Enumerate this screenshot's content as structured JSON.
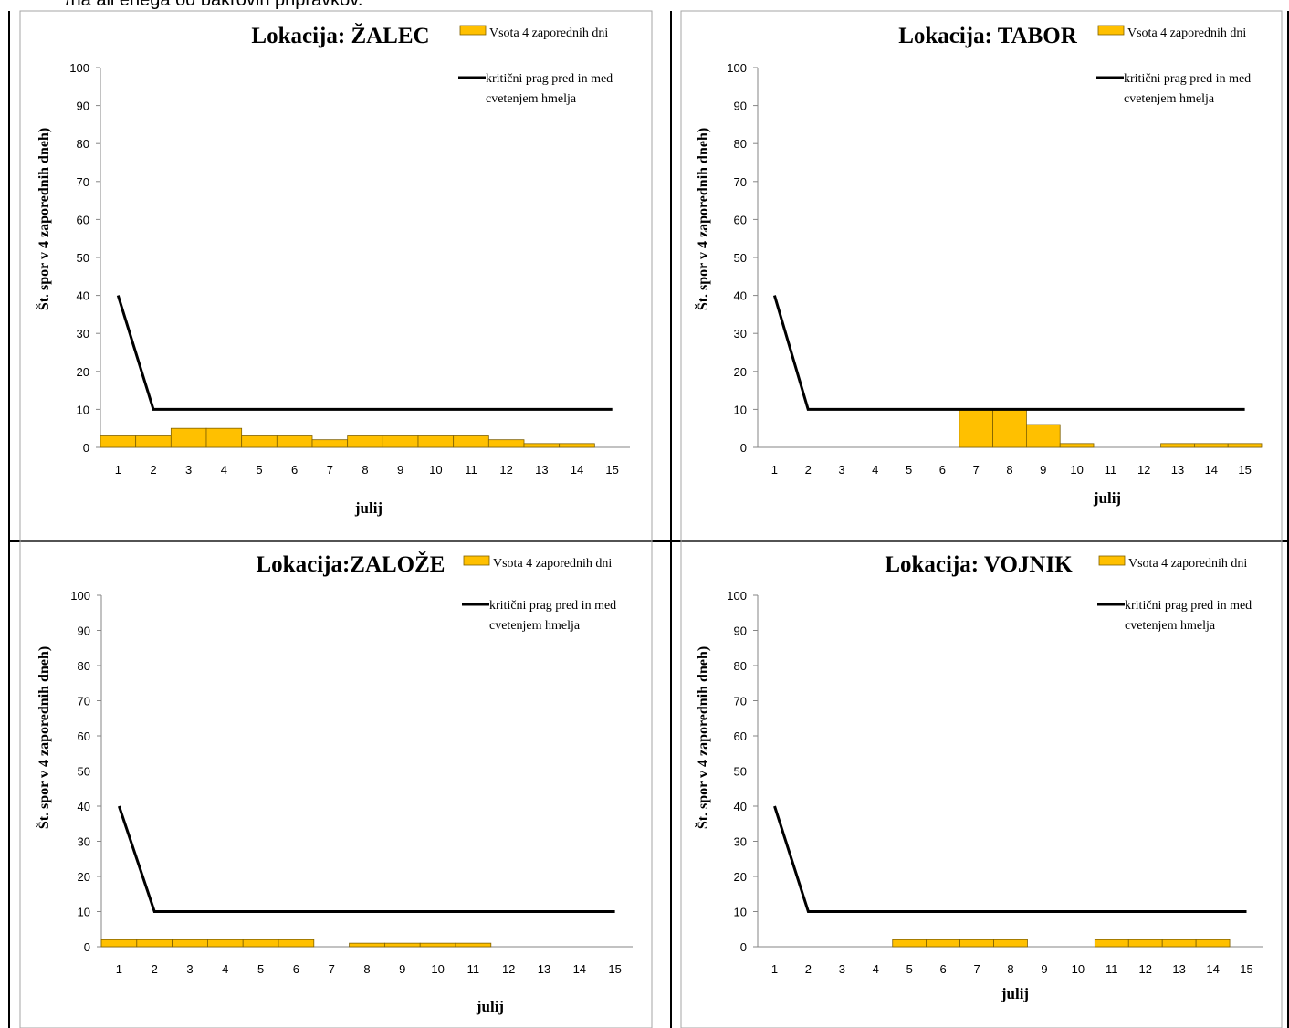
{
  "caption": "/na ali enega od bakrovih pripravkov.",
  "legend": {
    "bar_label": "Vsota 4 zaporednih dni",
    "line_label_1": "kritični prag pred in med",
    "line_label_2": "cvetenjem  hmelja"
  },
  "colors": {
    "bar": "#FFC000",
    "bar_stroke": "#7F6000",
    "line": "#000000",
    "grid_border": "#000000",
    "frame": "#A6A6A6"
  },
  "chart_data": [
    {
      "type": "bar+line",
      "title": "Lokacija: ŽALEC",
      "xlabel": "julij",
      "ylabel": "Št. spor v 4 zaporednih dneh)",
      "ylim": [
        0,
        100
      ],
      "yticks": [
        0,
        10,
        20,
        30,
        40,
        50,
        60,
        70,
        80,
        90,
        100
      ],
      "categories": [
        "1",
        "2",
        "3",
        "4",
        "5",
        "6",
        "7",
        "8",
        "9",
        "10",
        "11",
        "12",
        "13",
        "14",
        "15"
      ],
      "series": [
        {
          "name": "Vsota 4 zaporednih dni",
          "kind": "bar",
          "values": [
            3,
            3,
            5,
            5,
            3,
            3,
            2,
            3,
            3,
            3,
            3,
            2,
            1,
            1,
            0
          ]
        },
        {
          "name": "kritični prag pred in med cvetenjem  hmelja",
          "kind": "line",
          "values": [
            40,
            10,
            10,
            10,
            10,
            10,
            10,
            10,
            10,
            10,
            10,
            10,
            10,
            10,
            10
          ]
        }
      ]
    },
    {
      "type": "bar+line",
      "title": "Lokacija: TABOR",
      "xlabel": "julij",
      "ylabel": "Št. spor v 4 zaporednih dneh)",
      "ylim": [
        0,
        100
      ],
      "yticks": [
        0,
        10,
        20,
        30,
        40,
        50,
        60,
        70,
        80,
        90,
        100
      ],
      "categories": [
        "1",
        "2",
        "3",
        "4",
        "5",
        "6",
        "7",
        "8",
        "9",
        "10",
        "11",
        "12",
        "13",
        "14",
        "15"
      ],
      "series": [
        {
          "name": "Vsota 4 zaporednih dni",
          "kind": "bar",
          "values": [
            0,
            0,
            0,
            0,
            0,
            0,
            10,
            10,
            6,
            1,
            0,
            0,
            1,
            1,
            1
          ]
        },
        {
          "name": "kritični prag pred in med cvetenjem  hmelja",
          "kind": "line",
          "values": [
            40,
            10,
            10,
            10,
            10,
            10,
            10,
            10,
            10,
            10,
            10,
            10,
            10,
            10,
            10
          ]
        }
      ]
    },
    {
      "type": "bar+line",
      "title": "Lokacija:ZALOŽE",
      "xlabel": "julij",
      "ylabel": "Št. spor v 4 zaporednih dneh)",
      "ylim": [
        0,
        100
      ],
      "yticks": [
        0,
        10,
        20,
        30,
        40,
        50,
        60,
        70,
        80,
        90,
        100
      ],
      "categories": [
        "1",
        "2",
        "3",
        "4",
        "5",
        "6",
        "7",
        "8",
        "9",
        "10",
        "11",
        "12",
        "13",
        "14",
        "15"
      ],
      "series": [
        {
          "name": "Vsota 4 zaporednih dni",
          "kind": "bar",
          "values": [
            2,
            2,
            2,
            2,
            2,
            2,
            0,
            1,
            1,
            1,
            1,
            0,
            0,
            0,
            0
          ]
        },
        {
          "name": "kritični prag pred in med cvetenjem  hmelja",
          "kind": "line",
          "values": [
            40,
            10,
            10,
            10,
            10,
            10,
            10,
            10,
            10,
            10,
            10,
            10,
            10,
            10,
            10
          ]
        }
      ]
    },
    {
      "type": "bar+line",
      "title": "Lokacija: VOJNIK",
      "xlabel": "julij",
      "ylabel": "Št. spor v 4 zaporednih dneh)",
      "ylim": [
        0,
        100
      ],
      "yticks": [
        0,
        10,
        20,
        30,
        40,
        50,
        60,
        70,
        80,
        90,
        100
      ],
      "categories": [
        "1",
        "2",
        "3",
        "4",
        "5",
        "6",
        "7",
        "8",
        "9",
        "10",
        "11",
        "12",
        "13",
        "14",
        "15"
      ],
      "series": [
        {
          "name": "Vsota 4 zaporednih dni",
          "kind": "bar",
          "values": [
            0,
            0,
            0,
            0,
            2,
            2,
            2,
            2,
            0,
            0,
            2,
            2,
            2,
            2,
            0
          ]
        },
        {
          "name": "kritični prag pred in med cvetenjem  hmelja",
          "kind": "line",
          "values": [
            40,
            10,
            10,
            10,
            10,
            10,
            10,
            10,
            10,
            10,
            10,
            10,
            10,
            10,
            10
          ]
        }
      ]
    }
  ]
}
